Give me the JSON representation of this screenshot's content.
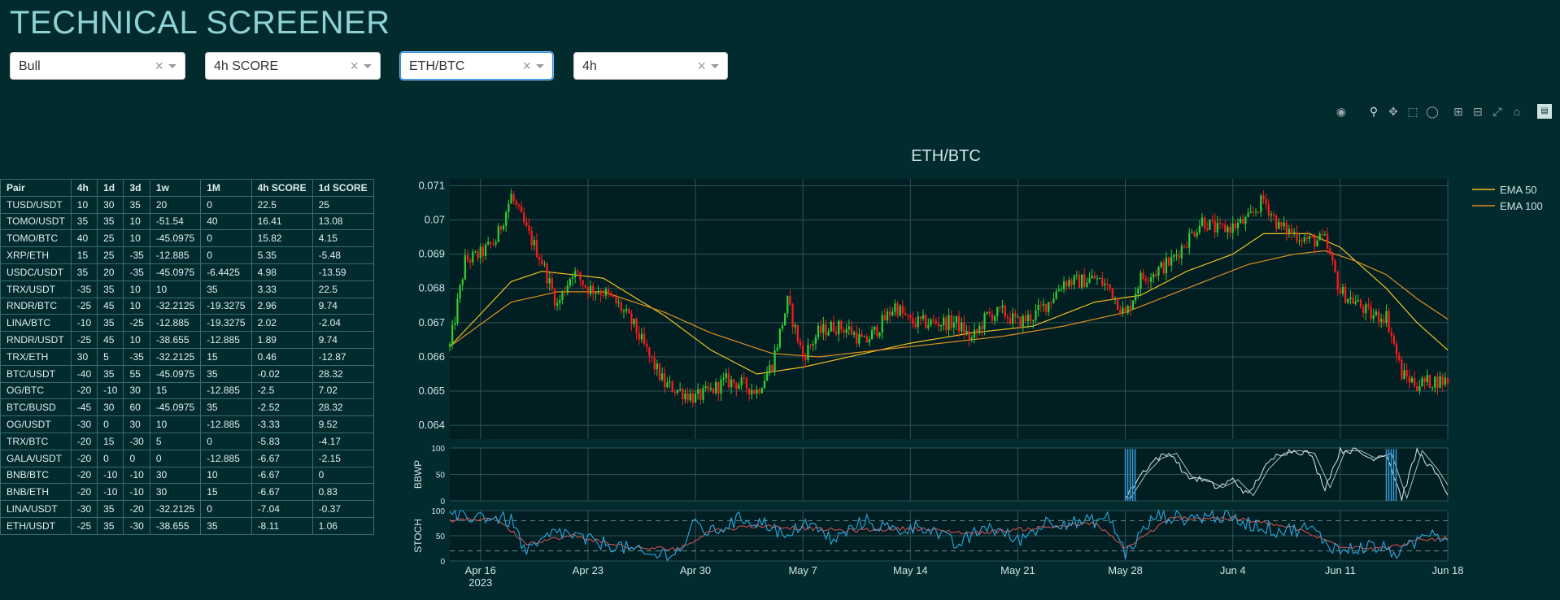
{
  "app": {
    "title": "TECHNICAL SCREENER"
  },
  "filters": [
    {
      "value": "Bull",
      "clear": "×"
    },
    {
      "value": "4h SCORE",
      "clear": "×"
    },
    {
      "value": "ETH/BTC",
      "clear": "×"
    },
    {
      "value": "4h",
      "clear": "×"
    }
  ],
  "toolbar": [
    "camera-icon",
    "zoom-icon",
    "pan-icon",
    "box-select-icon",
    "lasso-select-icon",
    "zoom-in-icon",
    "zoom-out-icon",
    "autoscale-icon",
    "reset-axes-icon",
    "plotly-logo-icon"
  ],
  "table": {
    "columns": [
      "Pair",
      "4h",
      "1d",
      "3d",
      "1w",
      "1M",
      "4h SCORE",
      "1d SCORE"
    ],
    "rows": [
      [
        "TUSD/USDT",
        "10",
        "30",
        "35",
        "20",
        "0",
        "22.5",
        "25"
      ],
      [
        "TOMO/USDT",
        "35",
        "35",
        "10",
        "-51.54",
        "40",
        "16.41",
        "13.08"
      ],
      [
        "TOMO/BTC",
        "40",
        "25",
        "10",
        "-45.0975",
        "0",
        "15.82",
        "4.15"
      ],
      [
        "XRP/ETH",
        "15",
        "25",
        "-35",
        "-12.885",
        "0",
        "5.35",
        "-5.48"
      ],
      [
        "USDC/USDT",
        "35",
        "20",
        "-35",
        "-45.0975",
        "-6.4425",
        "4.98",
        "-13.59"
      ],
      [
        "TRX/USDT",
        "-35",
        "35",
        "10",
        "10",
        "35",
        "3.33",
        "22.5"
      ],
      [
        "RNDR/BTC",
        "-25",
        "45",
        "10",
        "-32.2125",
        "-19.3275",
        "2.96",
        "9.74"
      ],
      [
        "LINA/BTC",
        "-10",
        "35",
        "-25",
        "-12.885",
        "-19.3275",
        "2.02",
        "-2.04"
      ],
      [
        "RNDR/USDT",
        "-25",
        "45",
        "10",
        "-38.655",
        "-12.885",
        "1.89",
        "9.74"
      ],
      [
        "TRX/ETH",
        "30",
        "5",
        "-35",
        "-32.2125",
        "15",
        "0.46",
        "-12.87"
      ],
      [
        "BTC/USDT",
        "-40",
        "35",
        "55",
        "-45.0975",
        "35",
        "-0.02",
        "28.32"
      ],
      [
        "OG/BTC",
        "-20",
        "-10",
        "30",
        "15",
        "-12.885",
        "-2.5",
        "7.02"
      ],
      [
        "BTC/BUSD",
        "-45",
        "30",
        "60",
        "-45.0975",
        "35",
        "-2.52",
        "28.32"
      ],
      [
        "OG/USDT",
        "-30",
        "0",
        "30",
        "10",
        "-12.885",
        "-3.33",
        "9.52"
      ],
      [
        "TRX/BTC",
        "-20",
        "15",
        "-30",
        "5",
        "0",
        "-5.83",
        "-4.17"
      ],
      [
        "GALA/USDT",
        "-20",
        "0",
        "0",
        "0",
        "-12.885",
        "-6.67",
        "-2.15"
      ],
      [
        "BNB/BTC",
        "-20",
        "-10",
        "-10",
        "30",
        "10",
        "-6.67",
        "0"
      ],
      [
        "BNB/ETH",
        "-20",
        "-10",
        "-10",
        "30",
        "15",
        "-6.67",
        "0.83"
      ],
      [
        "LINA/USDT",
        "-30",
        "35",
        "-20",
        "-32.2125",
        "0",
        "-7.04",
        "-0.37"
      ],
      [
        "ETH/USDT",
        "-25",
        "35",
        "-30",
        "-38.655",
        "35",
        "-8.11",
        "1.06"
      ]
    ]
  },
  "chart_data": {
    "type": "line",
    "title": "ETH/BTC",
    "colors": {
      "up": "#33cc33",
      "down": "#ff1a1a",
      "ema50": "#f0c020",
      "ema100": "#e09020",
      "bbwp": "#dfe6e6",
      "bbwp_ma": "#a9c2c2",
      "bbwp_extreme": "#3a9ad9",
      "stoch_k": "#2aa8e0",
      "stoch_d": "#e05050",
      "plot_bg": "#011f22",
      "grid": "#2f5356"
    },
    "x_ticks": [
      "Apr 16\n2023",
      "Apr 23",
      "Apr 30",
      "May 7",
      "May 14",
      "May 21",
      "May 28",
      "Jun 4",
      "Jun 11",
      "Jun 18"
    ],
    "x_range": [
      "2023-04-14",
      "2023-06-18"
    ],
    "price": {
      "ylim": [
        0.0636,
        0.0712
      ],
      "y_ticks": [
        "0.064",
        "0.065",
        "0.066",
        "0.067",
        "0.068",
        "0.069",
        "0.07",
        "0.071"
      ],
      "close_anchors": [
        [
          "2023-04-14",
          0.0663
        ],
        [
          "2023-04-15",
          0.0688
        ],
        [
          "2023-04-16",
          0.069
        ],
        [
          "2023-04-17",
          0.0694
        ],
        [
          "2023-04-18",
          0.0707
        ],
        [
          "2023-04-19",
          0.0697
        ],
        [
          "2023-04-20",
          0.0688
        ],
        [
          "2023-04-21",
          0.0675
        ],
        [
          "2023-04-22",
          0.0685
        ],
        [
          "2023-04-23",
          0.068
        ],
        [
          "2023-04-24",
          0.0679
        ],
        [
          "2023-04-25",
          0.0675
        ],
        [
          "2023-04-26",
          0.0669
        ],
        [
          "2023-04-27",
          0.066
        ],
        [
          "2023-04-28",
          0.0652
        ],
        [
          "2023-04-29",
          0.065
        ],
        [
          "2023-04-30",
          0.0648
        ],
        [
          "2023-05-01",
          0.065
        ],
        [
          "2023-05-02",
          0.0653
        ],
        [
          "2023-05-03",
          0.0652
        ],
        [
          "2023-05-04",
          0.065
        ],
        [
          "2023-05-05",
          0.0658
        ],
        [
          "2023-05-06",
          0.0676
        ],
        [
          "2023-05-07",
          0.066
        ],
        [
          "2023-05-08",
          0.0667
        ],
        [
          "2023-05-09",
          0.0669
        ],
        [
          "2023-05-10",
          0.0668
        ],
        [
          "2023-05-11",
          0.0664
        ],
        [
          "2023-05-12",
          0.0669
        ],
        [
          "2023-05-13",
          0.0675
        ],
        [
          "2023-05-14",
          0.067
        ],
        [
          "2023-05-15",
          0.067
        ],
        [
          "2023-05-16",
          0.067
        ],
        [
          "2023-05-17",
          0.067
        ],
        [
          "2023-05-18",
          0.0665
        ],
        [
          "2023-05-19",
          0.0672
        ],
        [
          "2023-05-20",
          0.0673
        ],
        [
          "2023-05-21",
          0.067
        ],
        [
          "2023-05-22",
          0.0672
        ],
        [
          "2023-05-23",
          0.0676
        ],
        [
          "2023-05-24",
          0.0682
        ],
        [
          "2023-05-25",
          0.0682
        ],
        [
          "2023-05-26",
          0.0683
        ],
        [
          "2023-05-27",
          0.068
        ],
        [
          "2023-05-28",
          0.0672
        ],
        [
          "2023-05-29",
          0.0683
        ],
        [
          "2023-05-30",
          0.0685
        ],
        [
          "2023-05-31",
          0.0688
        ],
        [
          "2023-06-01",
          0.0694
        ],
        [
          "2023-06-02",
          0.07
        ],
        [
          "2023-06-03",
          0.0697
        ],
        [
          "2023-06-04",
          0.0698
        ],
        [
          "2023-06-05",
          0.07
        ],
        [
          "2023-06-06",
          0.0706
        ],
        [
          "2023-06-07",
          0.0698
        ],
        [
          "2023-06-08",
          0.0696
        ],
        [
          "2023-06-09",
          0.0694
        ],
        [
          "2023-06-10",
          0.0694
        ],
        [
          "2023-06-11",
          0.0679
        ],
        [
          "2023-06-12",
          0.0676
        ],
        [
          "2023-06-13",
          0.0672
        ],
        [
          "2023-06-14",
          0.0672
        ],
        [
          "2023-06-15",
          0.0655
        ],
        [
          "2023-06-16",
          0.0652
        ],
        [
          "2023-06-17",
          0.0653
        ],
        [
          "2023-06-18",
          0.0653
        ]
      ],
      "ema50_anchors": [
        [
          "2023-04-14",
          0.0663
        ],
        [
          "2023-04-18",
          0.0682
        ],
        [
          "2023-04-20",
          0.0685
        ],
        [
          "2023-04-24",
          0.0683
        ],
        [
          "2023-04-28",
          0.0672
        ],
        [
          "2023-05-01",
          0.0662
        ],
        [
          "2023-05-04",
          0.0655
        ],
        [
          "2023-05-07",
          0.0657
        ],
        [
          "2023-05-10",
          0.066
        ],
        [
          "2023-05-14",
          0.0664
        ],
        [
          "2023-05-18",
          0.0667
        ],
        [
          "2023-05-22",
          0.0669
        ],
        [
          "2023-05-26",
          0.0676
        ],
        [
          "2023-05-29",
          0.0678
        ],
        [
          "2023-06-01",
          0.0685
        ],
        [
          "2023-06-04",
          0.069
        ],
        [
          "2023-06-06",
          0.0696
        ],
        [
          "2023-06-09",
          0.0696
        ],
        [
          "2023-06-11",
          0.0692
        ],
        [
          "2023-06-14",
          0.068
        ],
        [
          "2023-06-16",
          0.067
        ],
        [
          "2023-06-18",
          0.0662
        ]
      ],
      "ema100_anchors": [
        [
          "2023-04-14",
          0.0663
        ],
        [
          "2023-04-18",
          0.0676
        ],
        [
          "2023-04-21",
          0.0679
        ],
        [
          "2023-04-24",
          0.0679
        ],
        [
          "2023-04-28",
          0.0673
        ],
        [
          "2023-05-01",
          0.0667
        ],
        [
          "2023-05-05",
          0.0661
        ],
        [
          "2023-05-08",
          0.066
        ],
        [
          "2023-05-12",
          0.0662
        ],
        [
          "2023-05-16",
          0.0664
        ],
        [
          "2023-05-20",
          0.0666
        ],
        [
          "2023-05-24",
          0.0669
        ],
        [
          "2023-05-28",
          0.0673
        ],
        [
          "2023-06-01",
          0.068
        ],
        [
          "2023-06-05",
          0.0687
        ],
        [
          "2023-06-08",
          0.069
        ],
        [
          "2023-06-10",
          0.0691
        ],
        [
          "2023-06-12",
          0.0688
        ],
        [
          "2023-06-14",
          0.0684
        ],
        [
          "2023-06-16",
          0.0677
        ],
        [
          "2023-06-18",
          0.0671
        ]
      ]
    },
    "bbwp": {
      "ylabel": "BBWP",
      "ylim": [
        0,
        100
      ],
      "y_ticks": [
        "0",
        "50",
        "100"
      ],
      "anchors": [
        [
          "2023-05-28",
          5
        ],
        [
          "2023-05-29",
          50
        ],
        [
          "2023-05-30",
          80
        ],
        [
          "2023-05-31",
          90
        ],
        [
          "2023-06-01",
          45
        ],
        [
          "2023-06-02",
          40
        ],
        [
          "2023-06-03",
          25
        ],
        [
          "2023-06-04",
          40
        ],
        [
          "2023-06-05",
          10
        ],
        [
          "2023-06-06",
          60
        ],
        [
          "2023-06-07",
          90
        ],
        [
          "2023-06-08",
          95
        ],
        [
          "2023-06-09",
          90
        ],
        [
          "2023-06-10",
          25
        ],
        [
          "2023-06-11",
          95
        ],
        [
          "2023-06-12",
          95
        ],
        [
          "2023-06-13",
          80
        ],
        [
          "2023-06-14",
          90
        ],
        [
          "2023-06-15",
          5
        ],
        [
          "2023-06-16",
          95
        ],
        [
          "2023-06-17",
          60
        ],
        [
          "2023-06-18",
          15
        ]
      ],
      "extreme_days": [
        "2023-05-28",
        "2023-06-14"
      ]
    },
    "stoch": {
      "ylabel": "STOCH",
      "ylim": [
        0,
        100
      ],
      "y_ticks": [
        "0",
        "50",
        "100"
      ],
      "levels": [
        20,
        80
      ],
      "k_anchors": [
        [
          "2023-04-14",
          85
        ],
        [
          "2023-04-16",
          90
        ],
        [
          "2023-04-18",
          80
        ],
        [
          "2023-04-19",
          15
        ],
        [
          "2023-04-21",
          60
        ],
        [
          "2023-04-23",
          40
        ],
        [
          "2023-04-25",
          30
        ],
        [
          "2023-04-27",
          10
        ],
        [
          "2023-04-29",
          20
        ],
        [
          "2023-04-30",
          75
        ],
        [
          "2023-05-01",
          55
        ],
        [
          "2023-05-03",
          85
        ],
        [
          "2023-05-05",
          70
        ],
        [
          "2023-05-06",
          40
        ],
        [
          "2023-05-07",
          80
        ],
        [
          "2023-05-09",
          40
        ],
        [
          "2023-05-11",
          80
        ],
        [
          "2023-05-13",
          60
        ],
        [
          "2023-05-15",
          70
        ],
        [
          "2023-05-17",
          30
        ],
        [
          "2023-05-19",
          70
        ],
        [
          "2023-05-21",
          40
        ],
        [
          "2023-05-23",
          80
        ],
        [
          "2023-05-25",
          75
        ],
        [
          "2023-05-27",
          85
        ],
        [
          "2023-05-28",
          15
        ],
        [
          "2023-05-30",
          90
        ],
        [
          "2023-06-01",
          85
        ],
        [
          "2023-06-03",
          90
        ],
        [
          "2023-06-05",
          75
        ],
        [
          "2023-06-07",
          60
        ],
        [
          "2023-06-09",
          65
        ],
        [
          "2023-06-10",
          40
        ],
        [
          "2023-06-11",
          20
        ],
        [
          "2023-06-13",
          30
        ],
        [
          "2023-06-15",
          15
        ],
        [
          "2023-06-17",
          65
        ],
        [
          "2023-06-18",
          40
        ]
      ],
      "d_anchors": [
        [
          "2023-04-14",
          80
        ],
        [
          "2023-04-17",
          85
        ],
        [
          "2023-04-19",
          35
        ],
        [
          "2023-04-22",
          50
        ],
        [
          "2023-04-26",
          25
        ],
        [
          "2023-04-29",
          25
        ],
        [
          "2023-05-01",
          60
        ],
        [
          "2023-05-04",
          70
        ],
        [
          "2023-05-07",
          65
        ],
        [
          "2023-05-10",
          60
        ],
        [
          "2023-05-14",
          65
        ],
        [
          "2023-05-18",
          55
        ],
        [
          "2023-05-22",
          65
        ],
        [
          "2023-05-26",
          75
        ],
        [
          "2023-05-28",
          25
        ],
        [
          "2023-05-31",
          85
        ],
        [
          "2023-06-04",
          85
        ],
        [
          "2023-06-08",
          65
        ],
        [
          "2023-06-11",
          30
        ],
        [
          "2023-06-14",
          25
        ],
        [
          "2023-06-16",
          40
        ],
        [
          "2023-06-18",
          45
        ]
      ]
    },
    "legend": {
      "position": "top-right",
      "items": [
        {
          "name": "EMA 50",
          "color": "#f0c020"
        },
        {
          "name": "EMA 100",
          "color": "#e09020"
        }
      ]
    }
  }
}
